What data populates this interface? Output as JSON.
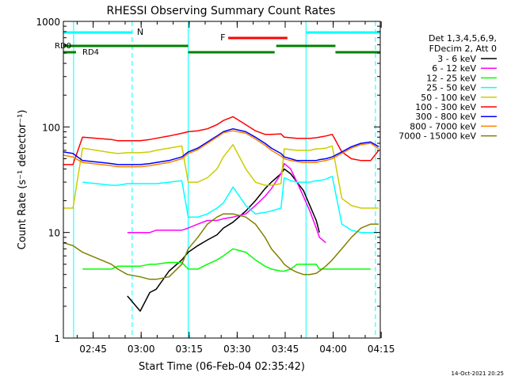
{
  "chart_data": {
    "type": "line",
    "title": "RHESSI Observing Summary Count Rates",
    "xlabel": "Start Time (06-Feb-04 02:35:42)",
    "ylabel": "Count Rate (s⁻¹ detector⁻¹)",
    "ylog": true,
    "ylim": [
      1,
      1000
    ],
    "xlim_minutes": [
      0,
      99
    ],
    "y_ticks": [
      {
        "value": 1,
        "label": "1"
      },
      {
        "value": 10,
        "label": "10"
      },
      {
        "value": 100,
        "label": "100"
      },
      {
        "value": 1000,
        "label": "1000"
      }
    ],
    "x_ticks": [
      {
        "minute": 9.3,
        "label": "02:45"
      },
      {
        "minute": 24.3,
        "label": "03:00"
      },
      {
        "minute": 39.3,
        "label": "03:15"
      },
      {
        "minute": 54.3,
        "label": "03:30"
      },
      {
        "minute": 69.3,
        "label": "03:45"
      },
      {
        "minute": 84.3,
        "label": "04:00"
      },
      {
        "minute": 99.3,
        "label": "04:15"
      }
    ],
    "legend_header": [
      "Det 1,3,4,5,6,9,",
      "FDecim 2, Att 0"
    ],
    "legend_placement": "right",
    "series": [
      {
        "name": "3 - 6 keV",
        "color": "#000000",
        "x": [
          0,
          3,
          6,
          15,
          17,
          20,
          24,
          27,
          29,
          33,
          37,
          39,
          42,
          45,
          48,
          50,
          53,
          57,
          60,
          63,
          65,
          68,
          69,
          71,
          73,
          75,
          77,
          79,
          80,
          82,
          84,
          87,
          90,
          93,
          96,
          98.5
        ],
        "y": [
          null,
          null,
          null,
          null,
          null,
          2.5,
          1.8,
          2.7,
          2.9,
          4.3,
          5.5,
          6.5,
          7.5,
          8.5,
          9.5,
          11,
          12.5,
          16,
          20,
          26,
          30,
          36,
          40,
          36,
          30,
          25,
          18,
          13,
          10,
          null,
          null,
          null,
          null,
          null,
          null,
          null
        ]
      },
      {
        "name": "6 - 12 keV",
        "color": "#ff00ff",
        "x": [
          0,
          3,
          6,
          15,
          17,
          20,
          24,
          27,
          29,
          33,
          37,
          39,
          42,
          45,
          48,
          50,
          53,
          57,
          60,
          63,
          65,
          68,
          69,
          71,
          73,
          75,
          77,
          79,
          80,
          82,
          84,
          87,
          90,
          93,
          96,
          98.5
        ],
        "y": [
          null,
          null,
          null,
          null,
          null,
          10,
          10,
          10,
          10.5,
          10.5,
          10.5,
          11,
          12,
          13,
          13,
          13.5,
          14,
          15,
          18,
          22,
          26,
          36,
          45,
          40,
          30,
          22,
          16,
          11,
          9,
          8,
          null,
          null,
          null,
          null,
          null,
          null
        ]
      },
      {
        "name": "12 - 25 keV",
        "color": "#00ff00",
        "x": [
          0,
          3,
          6,
          15,
          17,
          20,
          24,
          27,
          29,
          33,
          37,
          39,
          42,
          45,
          48,
          50,
          53,
          57,
          60,
          63,
          65,
          68,
          69,
          71,
          73,
          75,
          77,
          79,
          80,
          82,
          84,
          87,
          90,
          93,
          96,
          98.5
        ],
        "y": [
          null,
          null,
          4.5,
          4.5,
          4.8,
          4.8,
          4.8,
          5.0,
          5.0,
          5.2,
          5.2,
          4.5,
          4.5,
          5.0,
          5.5,
          6.0,
          7.0,
          6.5,
          5.5,
          4.8,
          4.5,
          4.3,
          4.3,
          4.5,
          5.0,
          5.0,
          5.0,
          5.0,
          4.5,
          4.5,
          4.5,
          4.5,
          4.5,
          4.5,
          4.5,
          null
        ]
      },
      {
        "name": "25 - 50 keV",
        "color": "#00ffff",
        "x": [
          0,
          3,
          6,
          15,
          17,
          20,
          24,
          27,
          29,
          33,
          37,
          39,
          42,
          45,
          48,
          50,
          53,
          57,
          60,
          63,
          65,
          68,
          69,
          71,
          73,
          75,
          77,
          79,
          80,
          82,
          84,
          87,
          90,
          93,
          96,
          98.5
        ],
        "y": [
          null,
          null,
          30,
          28,
          28,
          29,
          29,
          29,
          29,
          30,
          31,
          14,
          14,
          15,
          17,
          19,
          27,
          18,
          15,
          15.5,
          16,
          17,
          33,
          31,
          30,
          30,
          30,
          31,
          31,
          32,
          34,
          12,
          10.5,
          10,
          10,
          10
        ]
      },
      {
        "name": "50 - 100 keV",
        "color": "#cccc00",
        "x": [
          0,
          3,
          6,
          15,
          17,
          20,
          24,
          27,
          29,
          33,
          37,
          39,
          42,
          45,
          48,
          50,
          53,
          57,
          60,
          63,
          65,
          68,
          69,
          71,
          73,
          75,
          77,
          79,
          80,
          82,
          84,
          87,
          90,
          93,
          96,
          98.5
        ],
        "y": [
          17,
          17,
          63,
          57,
          56,
          57,
          57,
          58,
          60,
          63,
          66,
          30,
          30,
          33,
          40,
          52,
          68,
          40,
          30,
          28,
          28,
          29,
          62,
          61,
          60,
          60,
          60,
          62,
          62,
          63,
          66,
          21,
          18,
          17,
          17,
          17
        ]
      },
      {
        "name": "100 - 300 keV",
        "color": "#ff0000",
        "x": [
          0,
          3,
          6,
          15,
          17,
          20,
          24,
          27,
          29,
          33,
          37,
          39,
          42,
          45,
          48,
          50,
          53,
          57,
          60,
          63,
          65,
          68,
          69,
          71,
          73,
          75,
          77,
          79,
          80,
          82,
          84,
          87,
          90,
          93,
          96,
          98.5
        ],
        "y": [
          44,
          44,
          80,
          76,
          74,
          74,
          74,
          76,
          78,
          82,
          87,
          90,
          92,
          96,
          105,
          115,
          125,
          105,
          92,
          85,
          85,
          86,
          80,
          79,
          78,
          78,
          78,
          79,
          80,
          82,
          85,
          58,
          50,
          48,
          48,
          60
        ]
      },
      {
        "name": "300 - 800 keV",
        "color": "#0000ff",
        "x": [
          0,
          3,
          6,
          15,
          17,
          20,
          24,
          27,
          29,
          33,
          37,
          39,
          42,
          45,
          48,
          50,
          53,
          57,
          60,
          63,
          65,
          68,
          69,
          71,
          73,
          75,
          77,
          79,
          80,
          82,
          84,
          87,
          90,
          93,
          96,
          98.5
        ],
        "y": [
          58,
          56,
          48,
          45,
          44,
          44,
          44,
          45,
          46,
          48,
          52,
          58,
          63,
          72,
          82,
          90,
          96,
          90,
          80,
          70,
          63,
          56,
          52,
          50,
          48,
          48,
          48,
          48,
          49,
          50,
          52,
          58,
          65,
          70,
          72,
          65
        ]
      },
      {
        "name": "800 - 7000 keV",
        "color": "#ff8000",
        "x": [
          0,
          3,
          6,
          15,
          17,
          20,
          24,
          27,
          29,
          33,
          37,
          39,
          42,
          45,
          48,
          50,
          53,
          57,
          60,
          63,
          65,
          68,
          69,
          71,
          73,
          75,
          77,
          79,
          80,
          82,
          84,
          87,
          90,
          93,
          96,
          98.5
        ],
        "y": [
          54,
          52,
          46,
          43,
          42,
          42,
          42,
          43,
          44,
          46,
          50,
          56,
          61,
          70,
          80,
          88,
          92,
          87,
          77,
          67,
          60,
          53,
          50,
          48,
          47,
          46,
          46,
          46,
          47,
          48,
          50,
          56,
          63,
          68,
          70,
          62
        ]
      },
      {
        "name": "7000 - 15000 keV",
        "color": "#808000",
        "x": [
          0,
          3,
          6,
          15,
          17,
          20,
          24,
          27,
          29,
          33,
          37,
          39,
          42,
          45,
          48,
          50,
          53,
          57,
          60,
          63,
          65,
          68,
          69,
          71,
          73,
          75,
          77,
          79,
          80,
          82,
          84,
          87,
          90,
          93,
          96,
          98.5
        ],
        "y": [
          8,
          7.5,
          6.5,
          5,
          4.5,
          4,
          3.8,
          3.6,
          3.6,
          3.8,
          5,
          7,
          9,
          12,
          14,
          15,
          15,
          14,
          12,
          9,
          7,
          5.5,
          5,
          4.5,
          4.2,
          4.0,
          4.0,
          4.1,
          4.3,
          4.8,
          5.5,
          7,
          9,
          11,
          12,
          12
        ]
      }
    ],
    "annotations": {
      "texts": [
        {
          "label": "N",
          "color": "#00ffff"
        },
        {
          "label": "RD0",
          "color": "#008000"
        },
        {
          "label": "RD4",
          "color": "#008000"
        },
        {
          "label": "F",
          "color": "#ff0000"
        }
      ],
      "night_bars": [
        {
          "x0": 0,
          "x1": 21.5,
          "label_x": 23
        },
        {
          "x0": 75.8,
          "x1": 99
        }
      ],
      "rd0_bars": [
        {
          "x0": 0,
          "x1": 39
        },
        {
          "x0": 66.5,
          "x1": 85
        }
      ],
      "rd4_bars": [
        {
          "x0": 39,
          "x1": 66
        },
        {
          "x0": 85,
          "x1": 99
        }
      ],
      "flare_bar": {
        "x0": 51.5,
        "x1": 70
      },
      "vertical_lines": [
        {
          "minute": 3.2,
          "color": "#00ffff",
          "style": "solid"
        },
        {
          "minute": 21.5,
          "color": "#00ffff",
          "style": "dashed"
        },
        {
          "minute": 39,
          "color": "#00ffff",
          "style": "solid"
        },
        {
          "minute": 75.8,
          "color": "#00ffff",
          "style": "solid"
        },
        {
          "minute": 97.5,
          "color": "#00ffff",
          "style": "dashed"
        }
      ]
    },
    "footer_date": "14-Oct-2021 20:25"
  }
}
